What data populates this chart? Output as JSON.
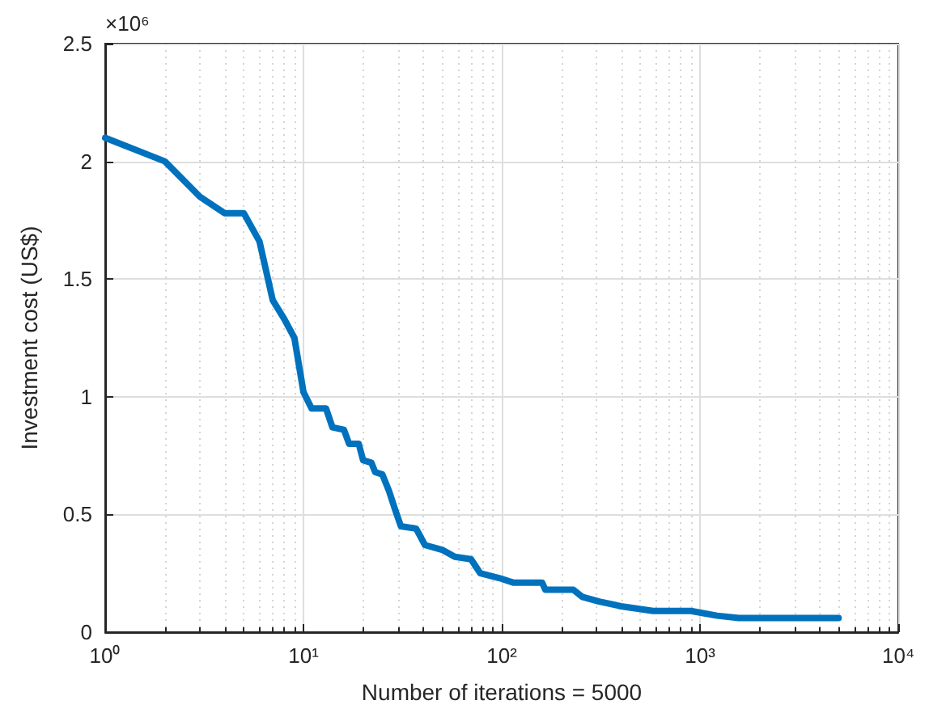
{
  "chart_data": {
    "type": "line",
    "xlabel": "Number of iterations = 5000",
    "ylabel": "Investment cost (US$)",
    "annotations": [
      "×10⁶"
    ],
    "x": [
      1,
      2,
      3,
      4,
      5,
      6,
      7,
      8,
      9,
      10,
      11,
      13,
      14,
      16,
      17,
      19,
      20,
      22,
      23,
      25,
      27,
      29,
      31,
      37,
      41,
      50,
      58,
      70,
      78,
      97,
      115,
      160,
      166,
      230,
      255,
      310,
      400,
      580,
      900,
      1220,
      1570,
      2600,
      5000
    ],
    "series": [
      {
        "color": "#0072bd",
        "values": [
          2.1,
          2.0,
          1.85,
          1.78,
          1.78,
          1.66,
          1.41,
          1.33,
          1.25,
          1.02,
          0.95,
          0.95,
          0.87,
          0.86,
          0.8,
          0.8,
          0.73,
          0.72,
          0.68,
          0.67,
          0.6,
          0.52,
          0.45,
          0.44,
          0.37,
          0.35,
          0.32,
          0.31,
          0.25,
          0.23,
          0.21,
          0.21,
          0.18,
          0.18,
          0.15,
          0.13,
          0.11,
          0.09,
          0.09,
          0.07,
          0.06,
          0.06,
          0.06
        ]
      }
    ],
    "log": "x",
    "xlim": [
      1,
      10000
    ],
    "xticks": [
      {
        "value": 1,
        "label": "10⁰"
      },
      {
        "value": 10,
        "label": "10¹"
      },
      {
        "value": 100,
        "label": "10²"
      },
      {
        "value": 1000,
        "label": "10³"
      },
      {
        "value": 10000,
        "label": "10⁴"
      }
    ],
    "ylim": [
      0,
      2.5
    ],
    "yticks": [
      0,
      0.5,
      1,
      1.5,
      2,
      2.5
    ],
    "grid": true,
    "marker": "none",
    "line_style": "solid"
  }
}
